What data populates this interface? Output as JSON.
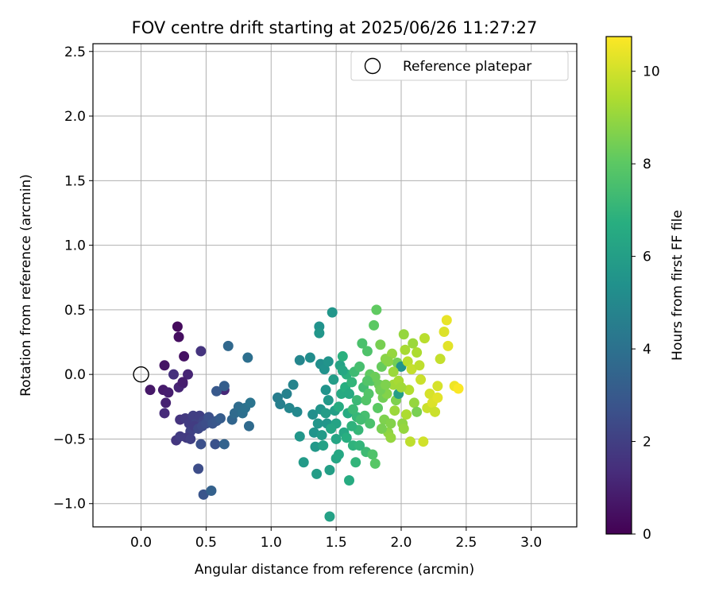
{
  "chart_data": {
    "type": "scatter",
    "title": "FOV centre drift starting at 2025/06/26 11:27:27",
    "xlabel": "Angular distance from reference (arcmin)",
    "ylabel": "Rotation from reference (arcmin)",
    "xlim": [
      -0.37,
      3.35
    ],
    "ylim": [
      -1.18,
      2.56
    ],
    "xticks": [
      0.0,
      0.5,
      1.0,
      1.5,
      2.0,
      2.5,
      3.0
    ],
    "xtick_labels": [
      "0.0",
      "0.5",
      "1.0",
      "1.5",
      "2.0",
      "2.5",
      "3.0"
    ],
    "yticks": [
      -1.0,
      -0.5,
      0.0,
      0.5,
      1.0,
      1.5,
      2.0,
      2.5
    ],
    "ytick_labels": [
      "−1.0",
      "−0.5",
      "0.0",
      "0.5",
      "1.0",
      "1.5",
      "2.0",
      "2.5"
    ],
    "grid": true,
    "legend": {
      "position": "top-right",
      "label": "Reference platepar"
    },
    "reference_point": {
      "x": 0.0,
      "y": 0.0
    },
    "colorbar": {
      "label": "Hours from first FF file",
      "min": 0,
      "max": 10.75,
      "ticks": [
        0,
        2,
        4,
        6,
        8,
        10
      ],
      "tick_labels": [
        "0",
        "2",
        "4",
        "6",
        "8",
        "10"
      ],
      "colormap": "viridis"
    },
    "points": [
      [
        0.28,
        0.37,
        0.3
      ],
      [
        0.29,
        0.29,
        0.4
      ],
      [
        0.33,
        0.14,
        0.5
      ],
      [
        0.18,
        0.07,
        0.6
      ],
      [
        0.07,
        -0.12,
        0.7
      ],
      [
        0.17,
        -0.12,
        0.8
      ],
      [
        0.21,
        -0.14,
        0.9
      ],
      [
        0.32,
        -0.07,
        1.0
      ],
      [
        0.36,
        0.0,
        1.1
      ],
      [
        0.19,
        -0.22,
        1.0
      ],
      [
        0.29,
        -0.1,
        1.1
      ],
      [
        0.32,
        -0.06,
        0.9
      ],
      [
        0.64,
        -0.12,
        1.2
      ],
      [
        0.18,
        -0.3,
        1.3
      ],
      [
        0.25,
        0.0,
        1.5
      ],
      [
        0.46,
        0.18,
        1.6
      ],
      [
        0.3,
        -0.35,
        1.6
      ],
      [
        0.34,
        -0.34,
        1.8
      ],
      [
        0.37,
        -0.38,
        1.9
      ],
      [
        0.4,
        -0.32,
        2.0
      ],
      [
        0.42,
        -0.38,
        2.1
      ],
      [
        0.45,
        -0.32,
        2.0
      ],
      [
        0.48,
        -0.36,
        2.2
      ],
      [
        0.38,
        -0.44,
        2.1
      ],
      [
        0.41,
        -0.4,
        1.9
      ],
      [
        0.44,
        -0.42,
        2.3
      ],
      [
        0.47,
        -0.4,
        2.4
      ],
      [
        0.5,
        -0.38,
        2.5
      ],
      [
        0.35,
        -0.49,
        1.8
      ],
      [
        0.27,
        -0.51,
        1.7
      ],
      [
        0.3,
        -0.48,
        1.9
      ],
      [
        0.38,
        -0.5,
        2.0
      ],
      [
        0.46,
        -0.54,
        2.6
      ],
      [
        0.57,
        -0.54,
        2.7
      ],
      [
        0.52,
        -0.33,
        2.6
      ],
      [
        0.55,
        -0.38,
        2.8
      ],
      [
        0.58,
        -0.13,
        3.0
      ],
      [
        0.58,
        -0.36,
        2.9
      ],
      [
        0.61,
        -0.34,
        3.1
      ],
      [
        0.44,
        -0.73,
        2.5
      ],
      [
        0.48,
        -0.93,
        2.8
      ],
      [
        0.54,
        -0.9,
        3.3
      ],
      [
        0.64,
        -0.09,
        3.2
      ],
      [
        0.64,
        -0.54,
        3.4
      ],
      [
        0.67,
        0.22,
        3.6
      ],
      [
        0.7,
        -0.35,
        3.5
      ],
      [
        0.72,
        -0.3,
        3.7
      ],
      [
        0.75,
        -0.25,
        3.8
      ],
      [
        0.78,
        -0.3,
        3.9
      ],
      [
        0.8,
        -0.26,
        4.0
      ],
      [
        0.82,
        0.13,
        3.9
      ],
      [
        0.83,
        -0.4,
        3.7
      ],
      [
        0.84,
        -0.22,
        4.1
      ],
      [
        1.05,
        -0.18,
        4.5
      ],
      [
        1.07,
        -0.23,
        4.6
      ],
      [
        1.12,
        -0.15,
        4.7
      ],
      [
        1.14,
        -0.26,
        4.9
      ],
      [
        1.17,
        -0.08,
        4.8
      ],
      [
        1.2,
        -0.29,
        5.0
      ],
      [
        1.22,
        0.11,
        4.9
      ],
      [
        1.22,
        -0.48,
        5.6
      ],
      [
        1.25,
        -0.68,
        5.8
      ],
      [
        1.3,
        0.13,
        5.2
      ],
      [
        1.32,
        -0.31,
        5.3
      ],
      [
        1.33,
        -0.45,
        5.5
      ],
      [
        1.34,
        -0.56,
        5.7
      ],
      [
        1.35,
        -0.77,
        5.9
      ],
      [
        1.37,
        0.37,
        5.4
      ],
      [
        1.37,
        0.32,
        5.6
      ],
      [
        1.38,
        0.08,
        5.3
      ],
      [
        1.38,
        -0.27,
        5.5
      ],
      [
        1.39,
        -0.47,
        5.8
      ],
      [
        1.4,
        -0.55,
        6.1
      ],
      [
        1.41,
        0.04,
        5.4
      ],
      [
        1.42,
        -0.12,
        5.5
      ],
      [
        1.43,
        -0.38,
        5.6
      ],
      [
        1.44,
        -0.2,
        5.7
      ],
      [
        1.45,
        -0.74,
        6.0
      ],
      [
        1.45,
        -1.1,
        6.1
      ],
      [
        1.47,
        0.48,
        5.6
      ],
      [
        1.48,
        -0.04,
        5.9
      ],
      [
        1.49,
        -0.28,
        6.0
      ],
      [
        1.5,
        -0.38,
        6.2
      ],
      [
        1.5,
        -0.65,
        6.3
      ],
      [
        1.52,
        -0.62,
        6.4
      ],
      [
        1.53,
        0.07,
        6.2
      ],
      [
        1.54,
        -0.15,
        6.5
      ],
      [
        1.55,
        0.14,
        6.8
      ],
      [
        1.56,
        -0.45,
        6.4
      ],
      [
        1.57,
        -0.1,
        6.7
      ],
      [
        1.58,
        0.0,
        6.8
      ],
      [
        1.59,
        -0.3,
        6.6
      ],
      [
        1.6,
        -0.82,
        6.6
      ],
      [
        1.62,
        -0.06,
        7.0
      ],
      [
        1.63,
        -0.55,
        6.9
      ],
      [
        1.64,
        0.02,
        7.3
      ],
      [
        1.65,
        -0.68,
        7.0
      ],
      [
        1.66,
        -0.2,
        7.2
      ],
      [
        1.67,
        -0.43,
        7.1
      ],
      [
        1.68,
        0.06,
        7.5
      ],
      [
        1.7,
        0.24,
        7.6
      ],
      [
        1.71,
        -0.1,
        7.4
      ],
      [
        1.72,
        -0.32,
        7.5
      ],
      [
        1.73,
        -0.6,
        7.3
      ],
      [
        1.74,
        0.18,
        7.7
      ],
      [
        1.75,
        -0.15,
        7.8
      ],
      [
        1.76,
        -0.38,
        7.6
      ],
      [
        1.77,
        -0.05,
        7.9
      ],
      [
        1.78,
        -0.62,
        7.7
      ],
      [
        1.79,
        0.38,
        8.0
      ],
      [
        1.8,
        -0.69,
        7.9
      ],
      [
        1.81,
        0.5,
        8.1
      ],
      [
        1.82,
        -0.26,
        8.0
      ],
      [
        1.83,
        -0.08,
        8.3
      ],
      [
        1.84,
        0.23,
        8.5
      ],
      [
        1.85,
        0.06,
        8.2
      ],
      [
        1.86,
        -0.18,
        8.4
      ],
      [
        1.87,
        -0.35,
        8.6
      ],
      [
        1.88,
        0.12,
        8.8
      ],
      [
        1.89,
        -0.15,
        8.7
      ],
      [
        1.9,
        -0.45,
        8.9
      ],
      [
        1.92,
        -0.49,
        9.0
      ],
      [
        1.93,
        0.16,
        9.0
      ],
      [
        1.94,
        -0.08,
        9.2
      ],
      [
        1.95,
        -0.28,
        9.1
      ],
      [
        1.96,
        -0.2,
        8.6
      ],
      [
        1.97,
        0.09,
        8.4
      ],
      [
        1.98,
        -0.15,
        6.0
      ],
      [
        2.0,
        0.06,
        5.5
      ],
      [
        2.01,
        -0.38,
        8.9
      ],
      [
        2.02,
        0.31,
        9.0
      ],
      [
        2.03,
        0.19,
        9.3
      ],
      [
        2.04,
        -0.31,
        9.4
      ],
      [
        2.05,
        0.1,
        9.6
      ],
      [
        2.06,
        -0.12,
        9.5
      ],
      [
        2.07,
        -0.52,
        9.7
      ],
      [
        2.08,
        0.04,
        9.8
      ],
      [
        2.09,
        0.24,
        9.1
      ],
      [
        2.1,
        -0.22,
        9.0
      ],
      [
        2.12,
        -0.29,
        8.5
      ],
      [
        2.14,
        0.07,
        9.7
      ],
      [
        2.15,
        -0.04,
        9.9
      ],
      [
        2.17,
        -0.52,
        10.0
      ],
      [
        2.18,
        0.28,
        9.6
      ],
      [
        2.2,
        -0.26,
        9.9
      ],
      [
        2.22,
        -0.15,
        10.1
      ],
      [
        2.24,
        -0.22,
        10.2
      ],
      [
        2.26,
        -0.29,
        9.9
      ],
      [
        2.28,
        -0.18,
        10.3
      ],
      [
        2.3,
        0.12,
        9.8
      ],
      [
        2.33,
        0.33,
        10.2
      ],
      [
        2.35,
        0.42,
        10.4
      ],
      [
        2.36,
        0.22,
        10.3
      ],
      [
        2.41,
        -0.09,
        10.5
      ],
      [
        2.44,
        -0.11,
        10.7
      ],
      [
        2.28,
        -0.09,
        10.1
      ],
      [
        1.46,
        -0.42,
        6.3
      ],
      [
        1.52,
        -0.25,
        6.6
      ],
      [
        1.58,
        -0.49,
        6.7
      ],
      [
        1.66,
        -0.33,
        7.1
      ],
      [
        1.42,
        -0.3,
        5.9
      ],
      [
        1.36,
        -0.38,
        5.6
      ],
      [
        1.55,
        0.03,
        6.4
      ],
      [
        1.6,
        -0.15,
        6.5
      ],
      [
        1.63,
        -0.27,
        7.2
      ],
      [
        1.69,
        -0.35,
        7.4
      ],
      [
        1.73,
        -0.2,
        7.8
      ],
      [
        1.76,
        0.0,
        8.1
      ],
      [
        1.8,
        -0.02,
        8.3
      ],
      [
        1.84,
        -0.12,
        8.4
      ],
      [
        1.88,
        -0.08,
        8.6
      ],
      [
        1.9,
        0.1,
        8.8
      ],
      [
        1.94,
        0.02,
        9.1
      ],
      [
        1.98,
        -0.05,
        9.3
      ],
      [
        2.0,
        -0.1,
        9.2
      ],
      [
        1.92,
        -0.38,
        8.7
      ],
      [
        1.85,
        -0.42,
        8.5
      ],
      [
        1.68,
        -0.55,
        7.0
      ],
      [
        1.62,
        -0.4,
        6.9
      ],
      [
        1.5,
        -0.5,
        6.3
      ],
      [
        1.44,
        0.1,
        5.5
      ],
      [
        1.74,
        -0.05,
        7.8
      ],
      [
        2.02,
        -0.42,
        9.0
      ],
      [
        2.12,
        0.17,
        9.4
      ]
    ]
  }
}
